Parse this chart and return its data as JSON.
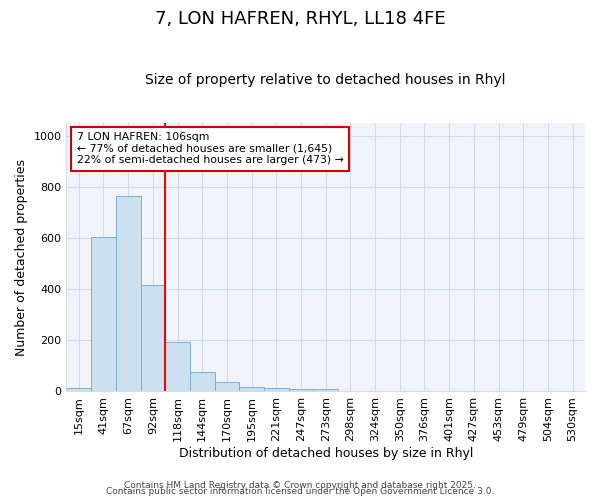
{
  "title": "7, LON HAFREN, RHYL, LL18 4FE",
  "subtitle": "Size of property relative to detached houses in Rhyl",
  "xlabel": "Distribution of detached houses by size in Rhyl",
  "ylabel": "Number of detached properties",
  "bar_labels": [
    "15sqm",
    "41sqm",
    "67sqm",
    "92sqm",
    "118sqm",
    "144sqm",
    "170sqm",
    "195sqm",
    "221sqm",
    "247sqm",
    "273sqm",
    "298sqm",
    "324sqm",
    "350sqm",
    "376sqm",
    "401sqm",
    "427sqm",
    "453sqm",
    "479sqm",
    "504sqm",
    "530sqm"
  ],
  "bar_values": [
    15,
    605,
    765,
    415,
    195,
    78,
    38,
    17,
    15,
    10,
    10,
    0,
    0,
    0,
    0,
    0,
    0,
    0,
    0,
    0,
    0
  ],
  "bar_color": "#cce0f0",
  "bar_edge_color": "#7ab0d4",
  "ylim": [
    0,
    1050
  ],
  "red_line_x": 3.5,
  "annotation_title": "7 LON HAFREN: 106sqm",
  "annotation_line1": "← 77% of detached houses are smaller (1,645)",
  "annotation_line2": "22% of semi-detached houses are larger (473) →",
  "annotation_box_color": "#ffffff",
  "annotation_box_edge": "#cc0000",
  "footer1": "Contains HM Land Registry data © Crown copyright and database right 2025.",
  "footer2": "Contains public sector information licensed under the Open Government Licence 3.0.",
  "background_color": "#ffffff",
  "plot_bg_color": "#f0f4fa",
  "grid_color": "#d0dcec",
  "title_fontsize": 13,
  "subtitle_fontsize": 10,
  "tick_fontsize": 8,
  "ylabel_fontsize": 9,
  "xlabel_fontsize": 9,
  "footer_fontsize": 6.5
}
